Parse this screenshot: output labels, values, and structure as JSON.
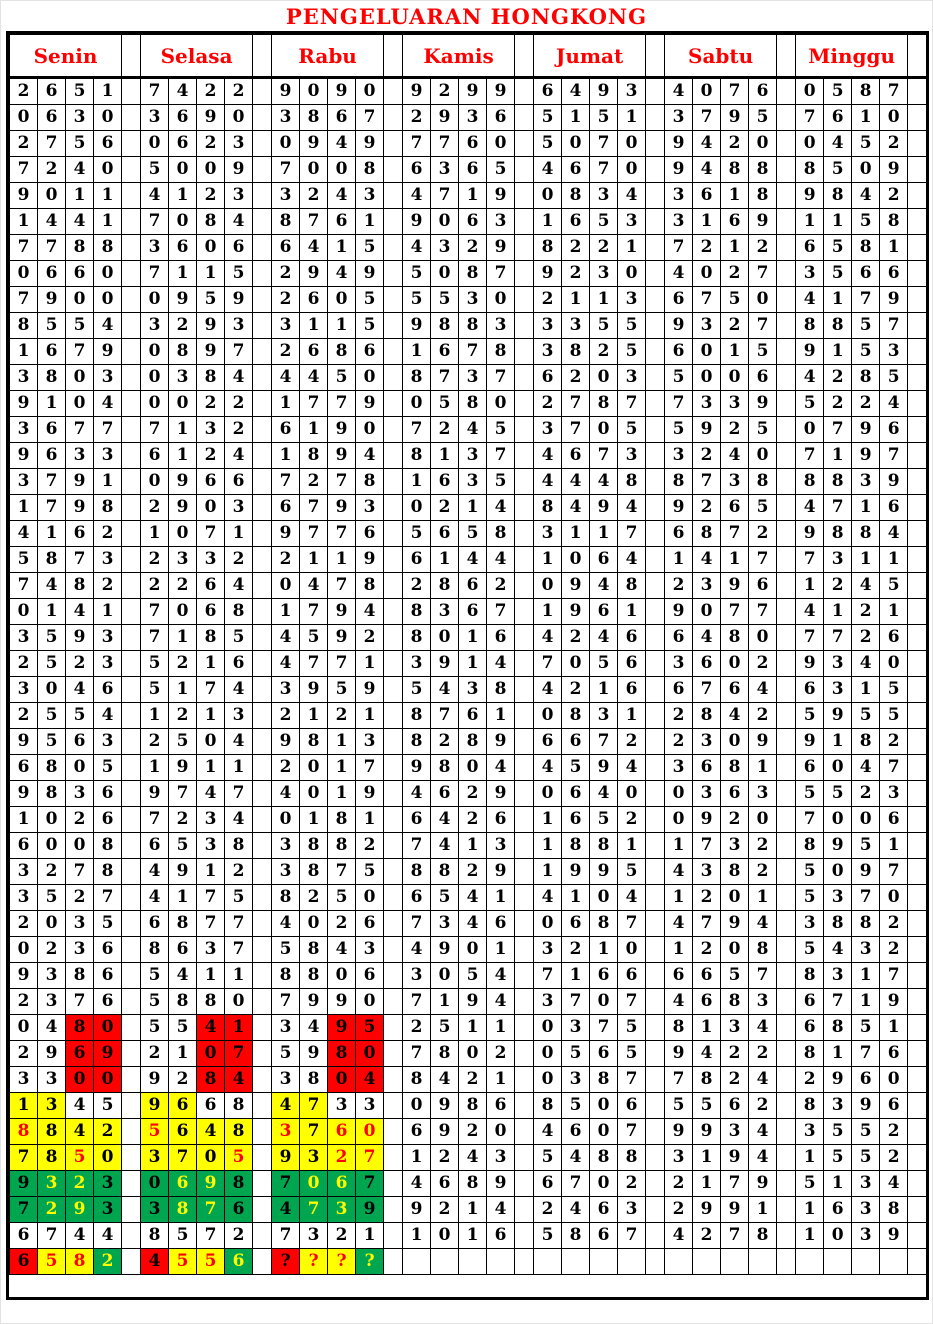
{
  "title": "PENGELUARAN HONGKONG",
  "colors": {
    "accent_red": "#ff0000",
    "highlight_yellow": "#ffff00",
    "highlight_green": "#00a550",
    "text_black": "#000000"
  },
  "days": [
    "Senin",
    "Selasa",
    "Rabu",
    "Kamis",
    "Jumat",
    "Sabtu",
    "Minggu"
  ],
  "rows": [
    [
      "2651",
      "7422",
      "9090",
      "9299",
      "6493",
      "4076",
      "0587"
    ],
    [
      "0630",
      "3690",
      "3867",
      "2936",
      "5151",
      "3795",
      "7610"
    ],
    [
      "2756",
      "0623",
      "0949",
      "7760",
      "5070",
      "9420",
      "0452"
    ],
    [
      "7240",
      "5009",
      "7008",
      "6365",
      "4670",
      "9488",
      "8509"
    ],
    [
      "9011",
      "4123",
      "3243",
      "4719",
      "0834",
      "3618",
      "9842"
    ],
    [
      "1441",
      "7084",
      "8761",
      "9063",
      "1653",
      "3169",
      "1158"
    ],
    [
      "7788",
      "3606",
      "6415",
      "4329",
      "8221",
      "7212",
      "6581"
    ],
    [
      "0660",
      "7115",
      "2949",
      "5087",
      "9230",
      "4027",
      "3566"
    ],
    [
      "7900",
      "0959",
      "2605",
      "5530",
      "2113",
      "6750",
      "4179"
    ],
    [
      "8554",
      "3293",
      "3115",
      "9883",
      "3355",
      "9327",
      "8857"
    ],
    [
      "1679",
      "0897",
      "2686",
      "1678",
      "3825",
      "6015",
      "9153"
    ],
    [
      "3803",
      "0384",
      "4450",
      "8737",
      "6203",
      "5006",
      "4285"
    ],
    [
      "9104",
      "0022",
      "1779",
      "0580",
      "2787",
      "7339",
      "5224"
    ],
    [
      "3677",
      "7132",
      "6190",
      "7245",
      "3705",
      "5925",
      "0796"
    ],
    [
      "9633",
      "6124",
      "1894",
      "8137",
      "4673",
      "3240",
      "7197"
    ],
    [
      "3791",
      "0966",
      "7278",
      "1635",
      "4448",
      "8738",
      "8839"
    ],
    [
      "1798",
      "2903",
      "6793",
      "0214",
      "8494",
      "9265",
      "4716"
    ],
    [
      "4162",
      "1071",
      "9776",
      "5658",
      "3117",
      "6872",
      "9884"
    ],
    [
      "5873",
      "2332",
      "2119",
      "6144",
      "1064",
      "1417",
      "7311"
    ],
    [
      "7482",
      "2264",
      "0478",
      "2862",
      "0948",
      "2396",
      "1245"
    ],
    [
      "0141",
      "7068",
      "1794",
      "8367",
      "1961",
      "9077",
      "4121"
    ],
    [
      "3593",
      "7185",
      "4592",
      "8016",
      "4246",
      "6480",
      "7726"
    ],
    [
      "2523",
      "5216",
      "4771",
      "3914",
      "7056",
      "3602",
      "9340"
    ],
    [
      "3046",
      "5174",
      "3959",
      "5438",
      "4216",
      "6764",
      "6315"
    ],
    [
      "2554",
      "1213",
      "2121",
      "8761",
      "0831",
      "2842",
      "5955"
    ],
    [
      "9563",
      "2504",
      "9813",
      "8289",
      "6672",
      "2309",
      "9182"
    ],
    [
      "6805",
      "1911",
      "2017",
      "9804",
      "4594",
      "3681",
      "6047"
    ],
    [
      "9836",
      "9747",
      "4019",
      "4629",
      "0640",
      "0363",
      "5523"
    ],
    [
      "1026",
      "7234",
      "0181",
      "6426",
      "1652",
      "0920",
      "7006"
    ],
    [
      "6008",
      "6538",
      "3882",
      "7413",
      "1881",
      "1732",
      "8951"
    ],
    [
      "3278",
      "4912",
      "3875",
      "8829",
      "1995",
      "4382",
      "5097"
    ],
    [
      "3527",
      "4175",
      "8250",
      "6541",
      "4104",
      "1201",
      "5370"
    ],
    [
      "2035",
      "6877",
      "4026",
      "7346",
      "0687",
      "4794",
      "3882"
    ],
    [
      "0236",
      "8637",
      "5843",
      "4901",
      "3210",
      "1208",
      "5432"
    ],
    [
      "9386",
      "5411",
      "8806",
      "3054",
      "7166",
      "6657",
      "8317"
    ],
    [
      "2376",
      "5880",
      "7990",
      "7194",
      "3707",
      "4683",
      "6719"
    ],
    [
      "0480",
      "5541",
      "3495",
      "2511",
      "0375",
      "8134",
      "6851"
    ],
    [
      "2969",
      "2107",
      "5980",
      "7802",
      "0565",
      "9422",
      "8176"
    ],
    [
      "3300",
      "9284",
      "3804",
      "8421",
      "0387",
      "7824",
      "2960"
    ],
    [
      "1345",
      "9668",
      "4733",
      "0986",
      "8506",
      "5562",
      "8396"
    ],
    [
      "8842",
      "5648",
      "3760",
      "6920",
      "4607",
      "9934",
      "3552"
    ],
    [
      "7850",
      "3705",
      "9327",
      "1243",
      "5488",
      "3194",
      "1552"
    ],
    [
      "9323",
      "0698",
      "7067",
      "4689",
      "6702",
      "2179",
      "5134"
    ],
    [
      "7293",
      "3876",
      "4739",
      "9214",
      "2463",
      "2991",
      "1638"
    ],
    [
      "6744",
      "8572",
      "7321",
      "1016",
      "5867",
      "4278",
      "1039"
    ],
    [
      "6582",
      "4556",
      "????",
      "",
      "",
      "",
      ""
    ]
  ],
  "cell_styles": {
    "36": {
      "0": {
        "bg": "wwrr",
        "fg": "kkkk"
      },
      "1": {
        "bg": "wwrr",
        "fg": "kkkk"
      },
      "2": {
        "bg": "wwrr",
        "fg": "kkkk"
      }
    },
    "37": {
      "0": {
        "bg": "wwrr",
        "fg": "kkkk"
      },
      "1": {
        "bg": "wwrr",
        "fg": "kkkk"
      },
      "2": {
        "bg": "wwrr",
        "fg": "kkkk"
      }
    },
    "38": {
      "0": {
        "bg": "wwrr",
        "fg": "kkkk"
      },
      "1": {
        "bg": "wwrr",
        "fg": "kkkk"
      },
      "2": {
        "bg": "wwrr",
        "fg": "kkkk"
      }
    },
    "39": {
      "0": {
        "bg": "yyww",
        "fg": "kkkk"
      },
      "1": {
        "bg": "yyww",
        "fg": "kkkk"
      },
      "2": {
        "bg": "yyww",
        "fg": "kkkk"
      }
    },
    "40": {
      "0": {
        "bg": "yyyy",
        "fg": "Rkkk"
      },
      "1": {
        "bg": "yyyy",
        "fg": "Rkkk"
      },
      "2": {
        "bg": "yyyy",
        "fg": "RkRR"
      }
    },
    "41": {
      "0": {
        "bg": "yyyy",
        "fg": "kkRk"
      },
      "1": {
        "bg": "yyyy",
        "fg": "kkkR"
      },
      "2": {
        "bg": "yyyy",
        "fg": "kkRR"
      }
    },
    "42": {
      "0": {
        "bg": "gggg",
        "fg": "kYYk"
      },
      "1": {
        "bg": "gggg",
        "fg": "kYYk"
      },
      "2": {
        "bg": "gggg",
        "fg": "kYYk"
      }
    },
    "43": {
      "0": {
        "bg": "gggg",
        "fg": "kYYk"
      },
      "1": {
        "bg": "gggg",
        "fg": "kYYk"
      },
      "2": {
        "bg": "gggg",
        "fg": "kYYk"
      }
    },
    "45": {
      "0": {
        "bg": "ryyg",
        "fg": "kRRY"
      },
      "1": {
        "bg": "ryyg",
        "fg": "kRRY"
      },
      "2": {
        "bg": "ryyg",
        "fg": "kRRY"
      }
    }
  }
}
